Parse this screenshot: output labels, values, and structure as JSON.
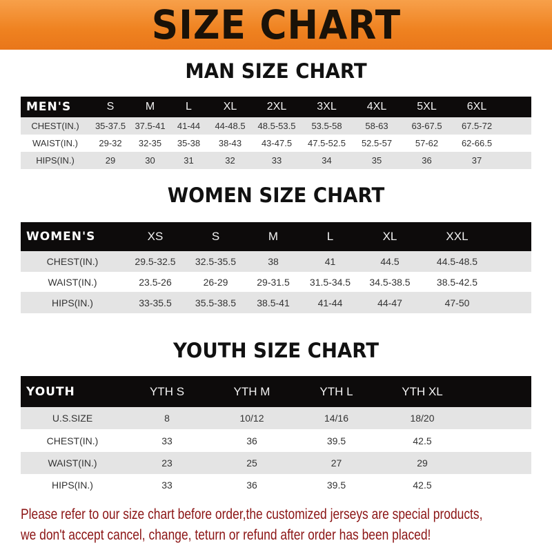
{
  "banner": {
    "title": "SIZE CHART",
    "color": "#ef8220"
  },
  "men": {
    "title": "MAN SIZE CHART",
    "header": [
      "MEN'S",
      "S",
      "M",
      "L",
      "XL",
      "2XL",
      "3XL",
      "4XL",
      "5XL",
      "6XL",
      ""
    ],
    "rows": [
      [
        "CHEST(IN.)",
        "35-37.5",
        "37.5-41",
        "41-44",
        "44-48.5",
        "48.5-53.5",
        "53.5-58",
        "58-63",
        "63-67.5",
        "67.5-72",
        ""
      ],
      [
        "WAIST(IN.)",
        "29-32",
        "32-35",
        "35-38",
        "38-43",
        "43-47.5",
        "47.5-52.5",
        "52.5-57",
        "57-62",
        "62-66.5",
        ""
      ],
      [
        "HIPS(IN.)",
        "29",
        "30",
        "31",
        "32",
        "33",
        "34",
        "35",
        "36",
        "37",
        ""
      ]
    ]
  },
  "women": {
    "title": "WOMEN SIZE CHART",
    "header": [
      "WOMEN'S",
      "XS",
      "S",
      "M",
      "L",
      "XL",
      "XXL",
      ""
    ],
    "rows": [
      [
        "CHEST(IN.)",
        "29.5-32.5",
        "32.5-35.5",
        "38",
        "41",
        "44.5",
        "44.5-48.5",
        ""
      ],
      [
        "WAIST(IN.)",
        "23.5-26",
        "26-29",
        "29-31.5",
        "31.5-34.5",
        "34.5-38.5",
        "38.5-42.5",
        ""
      ],
      [
        "HIPS(IN.)",
        "33-35.5",
        "35.5-38.5",
        "38.5-41",
        "41-44",
        "44-47",
        "47-50",
        ""
      ]
    ]
  },
  "youth": {
    "title": "YOUTH SIZE CHART",
    "header": [
      "YOUTH",
      "YTH S",
      "YTH M",
      "YTH L",
      "YTH XL",
      ""
    ],
    "rows": [
      [
        "U.S.SIZE",
        "8",
        "10/12",
        "14/16",
        "18/20",
        ""
      ],
      [
        "CHEST(IN.)",
        "33",
        "36",
        "39.5",
        "42.5",
        ""
      ],
      [
        "WAIST(IN.)",
        "23",
        "25",
        "27",
        "29",
        ""
      ],
      [
        "HIPS(IN.)",
        "33",
        "36",
        "39.5",
        "42.5",
        ""
      ]
    ]
  },
  "note": {
    "line1": "Please refer to our size chart before order,the customized jerseys are special products,",
    "line2": "we don't accept cancel, change, teturn or refund after order has been placed!",
    "color": "#8b1414"
  }
}
